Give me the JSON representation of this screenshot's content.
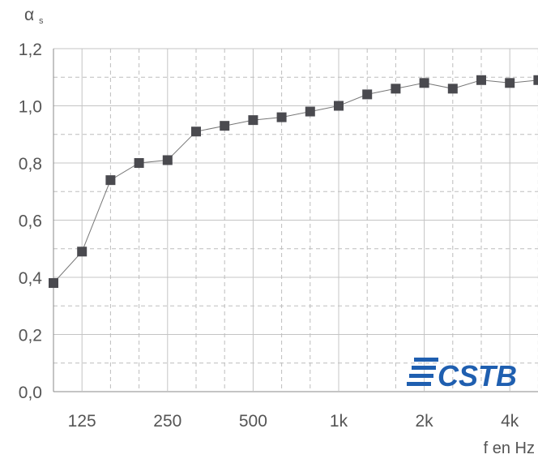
{
  "chart_data": {
    "type": "line",
    "ylabel": "αs",
    "xlabel": "f en Hz",
    "ylim": [
      0,
      1.2
    ],
    "y_ticks": [
      "0,0",
      "0,2",
      "0,4",
      "0,6",
      "0,8",
      "1,0",
      "1,2"
    ],
    "x_ticks": [
      "125",
      "250",
      "500",
      "1k",
      "2k",
      "4k"
    ],
    "x": [
      "100",
      "125",
      "160",
      "200",
      "250",
      "315",
      "400",
      "500",
      "630",
      "800",
      "1k",
      "1.25k",
      "1.6k",
      "2k",
      "2.5k",
      "3.15k",
      "4k",
      "5k"
    ],
    "series": [
      {
        "values": [
          0.38,
          0.49,
          0.74,
          0.8,
          0.81,
          0.91,
          0.93,
          0.95,
          0.96,
          0.98,
          1.0,
          1.04,
          1.06,
          1.08,
          1.06,
          1.09,
          1.08,
          1.09
        ]
      }
    ],
    "grid": true,
    "logo": "CSTB"
  },
  "colors": {
    "line": "#777777",
    "marker": "#4a4a4f",
    "grid": "#bbbbbb",
    "logo": "#1f5fb0"
  }
}
